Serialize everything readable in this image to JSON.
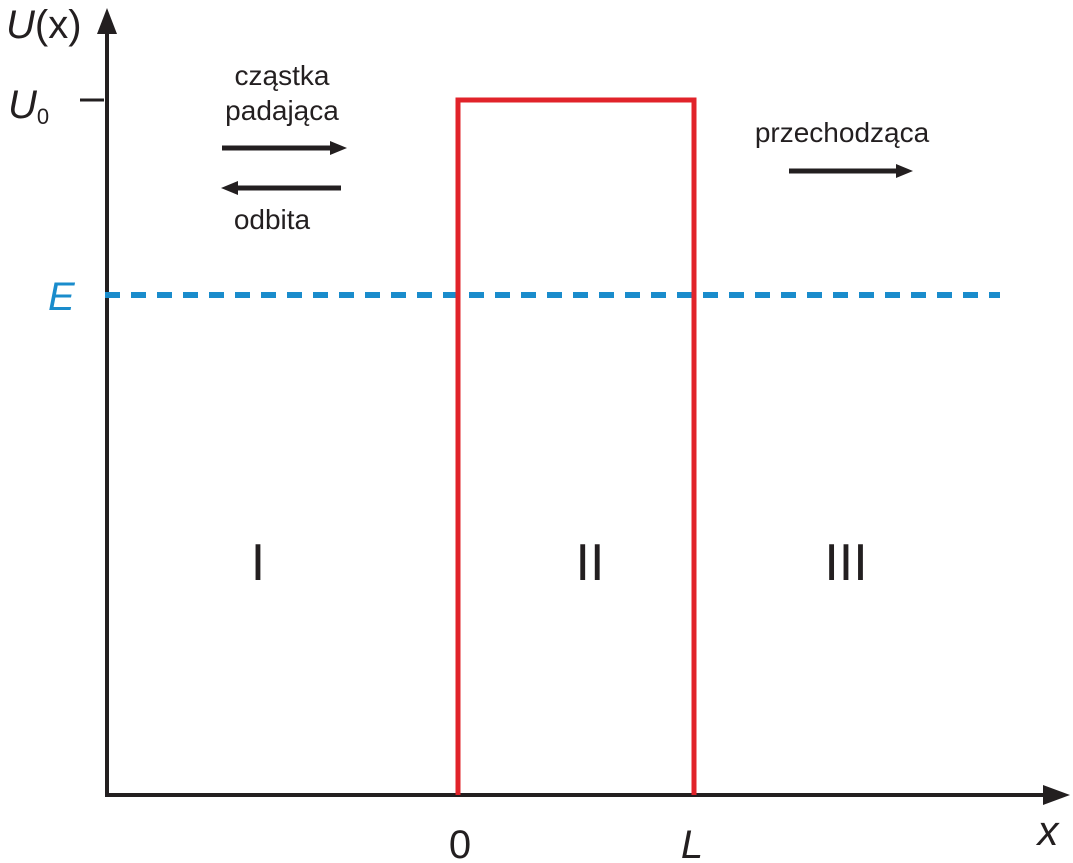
{
  "axes": {
    "y_label": {
      "main": "U",
      "arg": "(x)"
    },
    "x_label": "x",
    "x_ticks": [
      "0",
      "L"
    ]
  },
  "levels": {
    "barrier": {
      "main": "U",
      "sub": "0"
    },
    "energy": "E"
  },
  "arrows": {
    "incident": [
      "cząstka",
      "padająca"
    ],
    "reflected": "odbita",
    "transmitted": "przechodząca"
  },
  "regions": [
    "I",
    "II",
    "III"
  ]
}
